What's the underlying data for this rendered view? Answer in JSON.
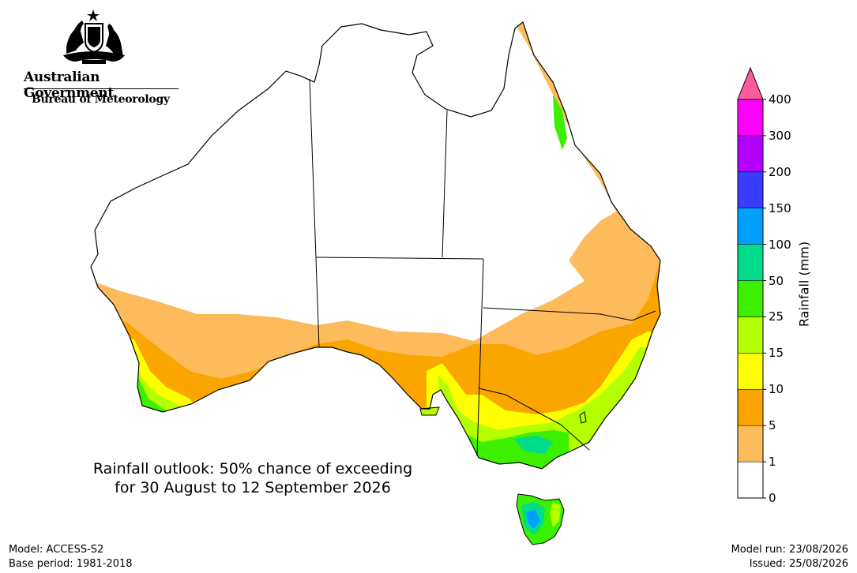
{
  "header": {
    "government": "Australian Government",
    "agency": "Bureau of Meteorology"
  },
  "title": {
    "line1": "Rainfall outlook: 50% chance of exceeding",
    "line2": "for 30 August to 12 September 2026"
  },
  "legend": {
    "title": "Rainfall (mm)",
    "ticks": [
      "0",
      "1",
      "5",
      "10",
      "15",
      "25",
      "50",
      "100",
      "150",
      "200",
      "300",
      "400"
    ],
    "bins": [
      {
        "range": "0-1",
        "color": "#ffffff"
      },
      {
        "range": "1-5",
        "color": "#fdbb5b"
      },
      {
        "range": "5-10",
        "color": "#fba500"
      },
      {
        "range": "10-15",
        "color": "#ffff00"
      },
      {
        "range": "15-25",
        "color": "#b4ff00"
      },
      {
        "range": "25-50",
        "color": "#3cf000"
      },
      {
        "range": "50-100",
        "color": "#00dc8c"
      },
      {
        "range": "100-150",
        "color": "#00a0ff"
      },
      {
        "range": "150-200",
        "color": "#3c3cff"
      },
      {
        "range": "200-300",
        "color": "#b400ff"
      },
      {
        "range": "300-400",
        "color": "#ff00ff"
      },
      {
        "range": ">400",
        "color": "#ff5aa0"
      }
    ]
  },
  "footer": {
    "model": "Model: ACCESS-S2",
    "base_period": "Base period: 1981-2018",
    "model_run": "Model run: 23/08/2026",
    "issued": "Issued: 25/08/2026"
  }
}
